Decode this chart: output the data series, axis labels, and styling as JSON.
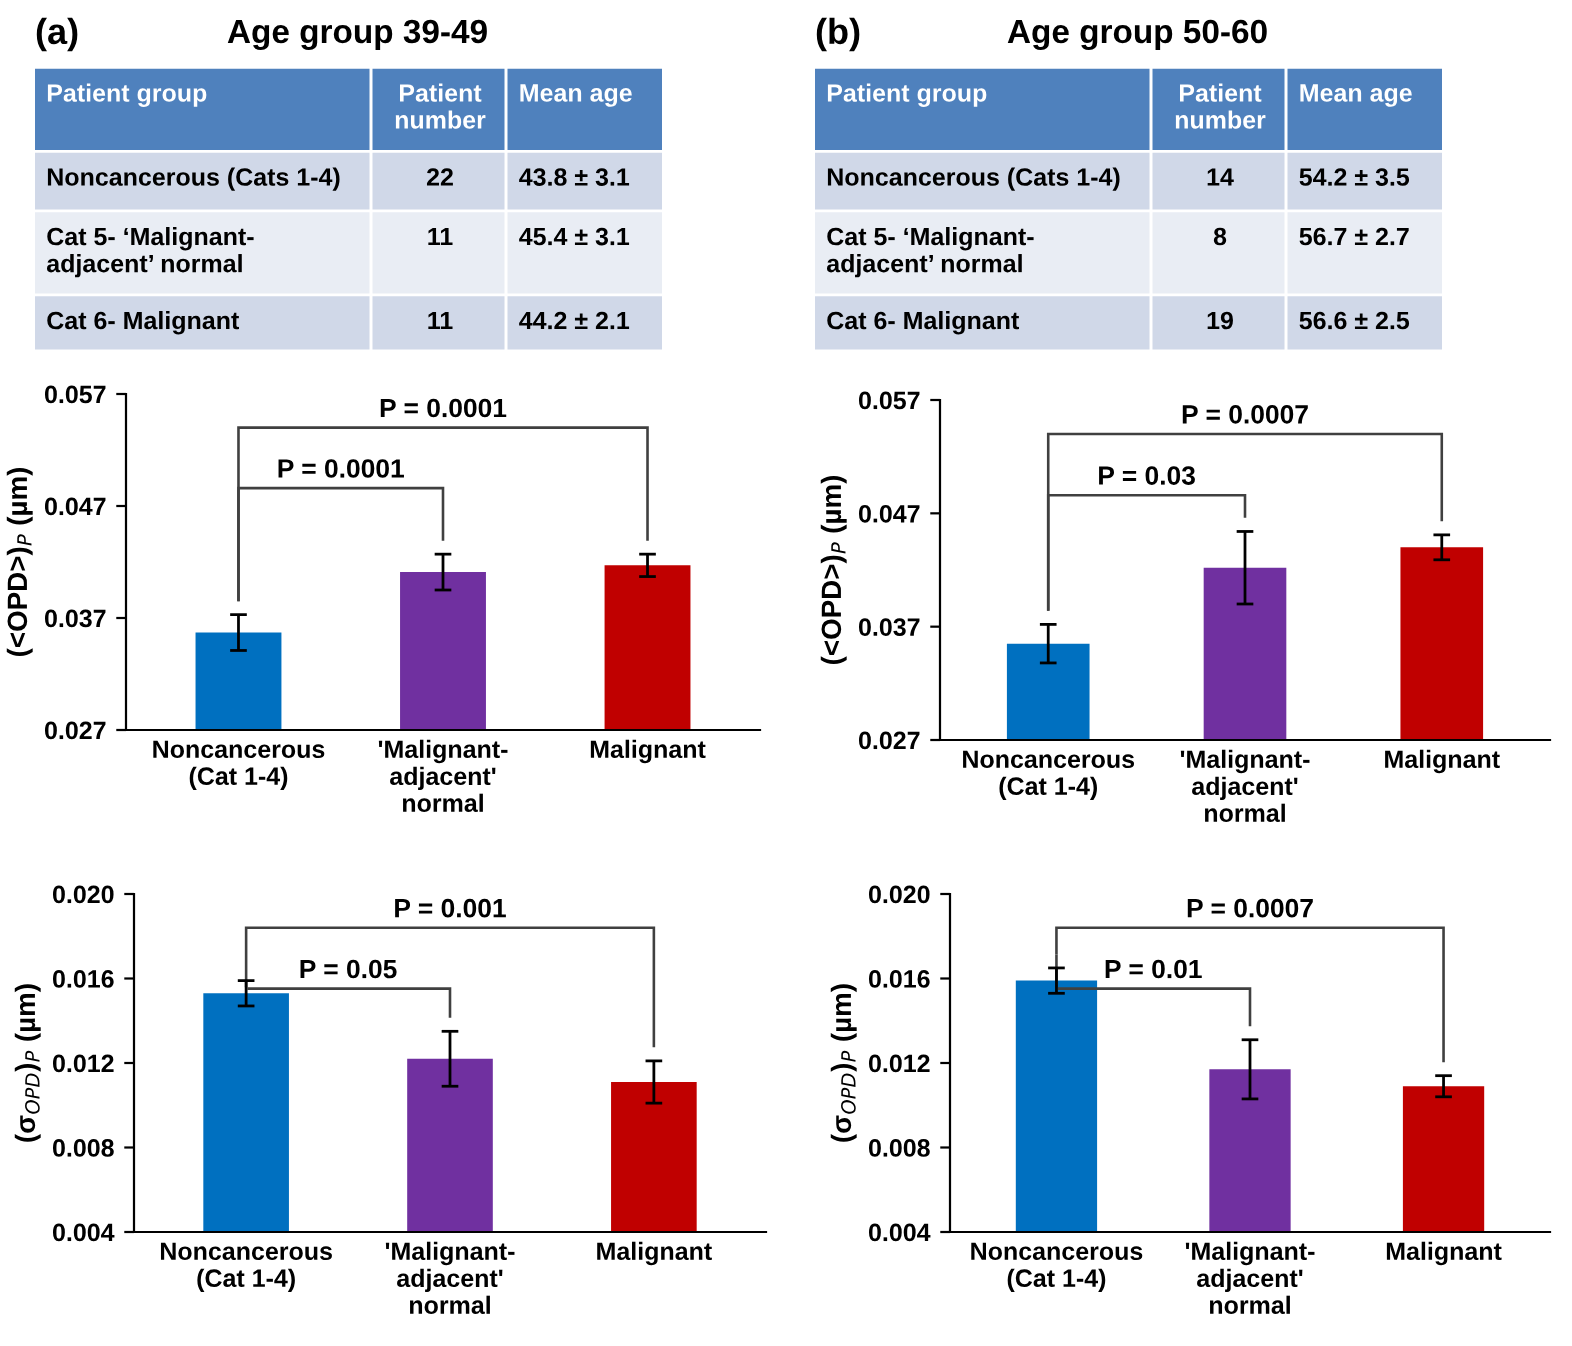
{
  "chart_data": [
    {
      "type": "other",
      "title": "Age group 39-49",
      "annotations": [
        "(a)",
        "Patient group",
        "Patient number",
        "Mean age",
        "Noncancerous (Cats 1-4)",
        "22",
        "43.8 ± 3.1",
        "Cat 5- ‘Malignant-adjacent’ normal",
        "11",
        "45.4 ± 3.1",
        "Cat 6- Malignant",
        "11",
        "44.2 ± 2.1"
      ]
    },
    {
      "type": "other",
      "title": "Age group 50-60",
      "annotations": [
        "(b)",
        "Patient group",
        "Patient number",
        "Mean age",
        "Noncancerous (Cats 1-4)",
        "14",
        "54.2 ± 3.5",
        "Cat 5- ‘Malignant-adjacent’ normal",
        "8",
        "56.7 ± 2.7",
        "Cat 6- Malignant",
        "19",
        "56.6 ± 2.5"
      ]
    },
    {
      "type": "bar",
      "categories": [
        "Noncancerous (Cat 1-4)",
        "'Malignant-adjacent' normal",
        "Malignant"
      ],
      "values": [
        0.0357,
        0.0411,
        0.0417
      ],
      "errors": [
        0.0016,
        0.0016,
        0.001
      ],
      "colors": [
        "#0070c0",
        "#7030a0",
        "#c00000"
      ],
      "ylabel": "(<OPD>)$_{P}$ (µm)",
      "ylim": [
        0.027,
        0.057
      ],
      "yticks": [
        0.027,
        0.037,
        0.047,
        0.057
      ],
      "grid": false,
      "annotations": [
        "P = 0.0001",
        "P = 0.0001"
      ]
    },
    {
      "type": "bar",
      "categories": [
        "Noncancerous (Cat 1-4)",
        "'Malignant-adjacent' normal",
        "Malignant"
      ],
      "values": [
        0.0355,
        0.0422,
        0.044
      ],
      "errors": [
        0.0017,
        0.0032,
        0.0011
      ],
      "colors": [
        "#0070c0",
        "#7030a0",
        "#c00000"
      ],
      "ylabel": "(<OPD>)$_{P}$ (µm)",
      "ylim": [
        0.027,
        0.057
      ],
      "yticks": [
        0.027,
        0.037,
        0.047,
        0.057
      ],
      "grid": false,
      "annotations": [
        "P = 0.03",
        "P = 0.0007"
      ]
    },
    {
      "type": "bar",
      "categories": [
        "Noncancerous (Cat 1-4)",
        "'Malignant-adjacent' normal",
        "Malignant"
      ],
      "values": [
        0.0153,
        0.0122,
        0.0111
      ],
      "errors": [
        0.0006,
        0.0013,
        0.001
      ],
      "colors": [
        "#0070c0",
        "#7030a0",
        "#c00000"
      ],
      "ylabel": "(σ$_{OPD}$)$_{P}$ (µm)",
      "ylim": [
        0.004,
        0.02
      ],
      "yticks": [
        0.004,
        0.008,
        0.012,
        0.016,
        {
          "value": 0.02,
          "label": "0.020"
        }
      ],
      "grid": false,
      "annotations": [
        "P = 0.05",
        "P = 0.001"
      ]
    },
    {
      "type": "bar",
      "categories": [
        "Noncancerous (Cat 1-4)",
        "'Malignant-adjacent' normal",
        "Malignant"
      ],
      "values": [
        0.0159,
        0.0117,
        0.0109
      ],
      "errors": [
        0.0006,
        0.0014,
        0.0005
      ],
      "colors": [
        "#0070c0",
        "#7030a0",
        "#c00000"
      ],
      "ylabel": "(σ$_{OPD}$)$_{P}$ (µm)",
      "ylim": [
        0.004,
        0.02
      ],
      "yticks": [
        0.004,
        0.008,
        0.012,
        0.016,
        {
          "value": 0.02,
          "label": "0.020"
        }
      ],
      "grid": false,
      "annotations": [
        "P = 0.01",
        "P = 0.0007"
      ]
    }
  ]
}
